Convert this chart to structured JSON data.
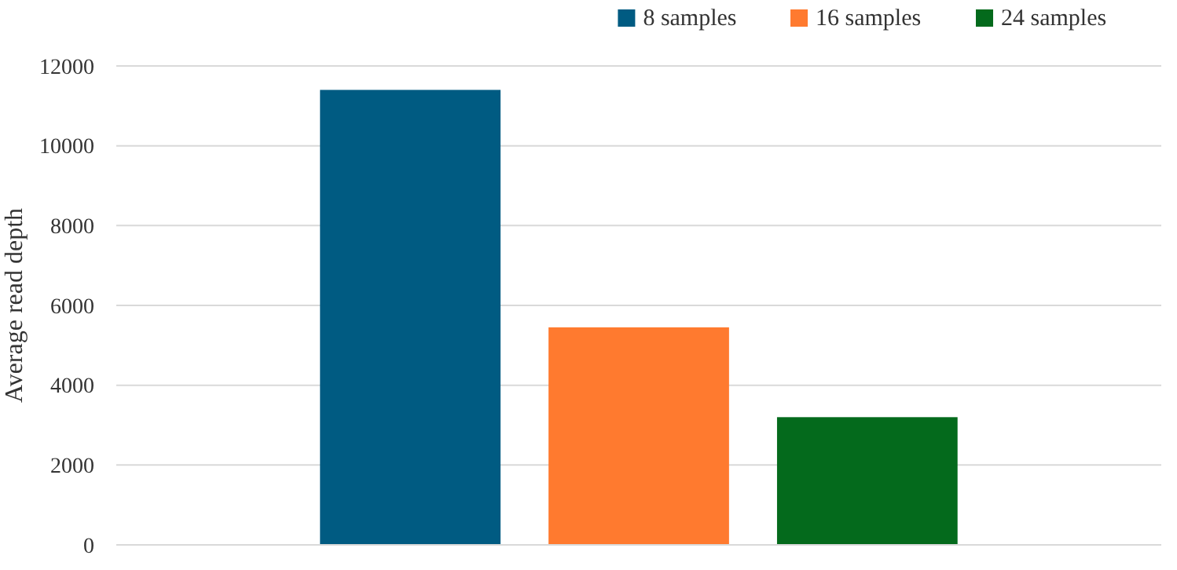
{
  "chart_data": {
    "type": "bar",
    "ylabel": "Average read depth",
    "categories": [
      null
    ],
    "series": [
      {
        "name": "8 samples",
        "color": "#005b82",
        "values": [
          11400
        ]
      },
      {
        "name": "16 samples",
        "color": "#ff7a2f",
        "values": [
          5450
        ]
      },
      {
        "name": "24 samples",
        "color": "#046a1c",
        "values": [
          3200
        ]
      }
    ],
    "ylim": [
      0,
      12000
    ],
    "yticks": [
      0,
      2000,
      4000,
      6000,
      8000,
      10000,
      12000
    ],
    "grid": "y",
    "legend": "top right"
  }
}
